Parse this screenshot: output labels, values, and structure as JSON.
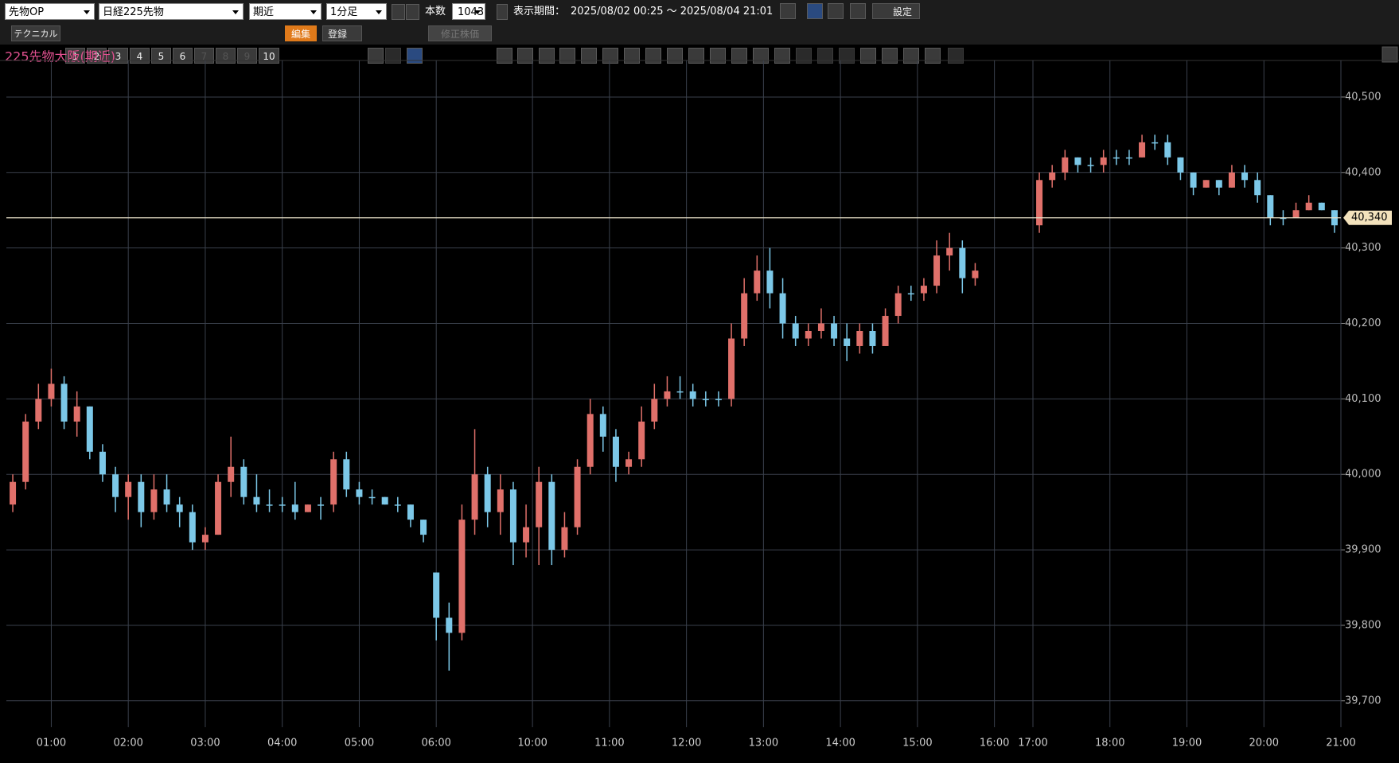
{
  "toolbar": {
    "market": "先物OP",
    "symbol": "日経225先物",
    "contract": "期近",
    "interval": "1分足",
    "count_label": "本数",
    "count": "1043",
    "period_label": "表示期間：",
    "period": "2025/08/02 00:25 ～ 2025/08/04 21:01",
    "settings": "設定"
  },
  "toolbar2": {
    "technical": "テクニカル",
    "slots": [
      "1",
      "2",
      "3",
      "4",
      "5",
      "6",
      "7",
      "8",
      "9",
      "10"
    ],
    "edit": "編集",
    "register": "登録",
    "adjusted": "修正株価"
  },
  "chart_data": {
    "type": "candlestick",
    "title": "225先物大阪(期近)",
    "x": [
      0.5,
      1.5,
      2.5,
      3.5,
      4.5,
      5.5,
      6.5,
      7.5,
      8.5,
      9.5,
      10.5,
      11.5,
      12.5,
      13.5,
      14.5,
      15.5,
      16.5,
      17.5,
      18.5,
      19.5,
      20.5,
      21.5,
      22.5,
      23.5,
      24.5,
      25.5,
      26.5,
      27.5,
      28.5,
      29.5,
      30.5,
      31.5,
      32.5,
      33.5,
      34.5,
      35.5,
      36.5,
      37.5,
      38.5,
      39.5,
      40.5,
      41.5,
      42.5,
      43.5,
      44.5,
      45.5,
      46.5,
      47.5,
      48.5,
      49.5,
      50.5,
      51.5,
      52.5,
      53.5,
      54.5,
      55.5,
      56.5,
      57.5,
      58.5,
      59.5,
      60.5,
      61.5,
      62.5,
      63.5,
      64.5,
      65.5,
      66.5,
      67.5,
      68.5,
      69.5,
      70.5,
      71.5,
      72.5,
      73.5,
      74.5,
      75.5,
      80.5,
      81.5,
      82.5,
      83.5,
      84.5,
      85.5,
      86.5,
      87.5,
      88.5,
      89.5,
      90.5,
      91.5,
      92.5,
      93.5,
      94.5,
      95.5,
      96.5,
      97.5,
      98.5,
      99.5,
      100.5,
      101.5,
      102.5,
      103.5
    ],
    "open": [
      39960,
      39990,
      40070,
      40100,
      40120,
      40070,
      40090,
      40030,
      40000,
      39970,
      39990,
      39950,
      39980,
      39960,
      39950,
      39910,
      39920,
      39990,
      40010,
      39970,
      39960,
      39960,
      39960,
      39950,
      39960,
      39960,
      40020,
      39980,
      39970,
      39970,
      39960,
      39960,
      39940,
      39870,
      39810,
      39790,
      39940,
      40000,
      39950,
      39980,
      39910,
      39930,
      39990,
      39900,
      39930,
      40010,
      40080,
      40050,
      40010,
      40020,
      40070,
      40100,
      40110,
      40110,
      40100,
      40100,
      40100,
      40180,
      40240,
      40270,
      40240,
      40200,
      40180,
      40190,
      40200,
      40180,
      40170,
      40190,
      40170,
      40210,
      40240,
      40240,
      40250,
      40290,
      40300,
      40260,
      40330,
      40390,
      40400,
      40420,
      40410,
      40410,
      40420,
      40420,
      40420,
      40440,
      40440,
      40420,
      40400,
      40380,
      40390,
      40380,
      40400,
      40390,
      40370,
      40340,
      40340,
      40350,
      40360,
      40350
    ],
    "high": [
      40000,
      40080,
      40120,
      40140,
      40130,
      40110,
      40090,
      40040,
      40010,
      40000,
      40000,
      40000,
      40000,
      39970,
      39960,
      39930,
      40000,
      40050,
      40020,
      40000,
      39980,
      39970,
      39990,
      39960,
      39970,
      40030,
      40030,
      39990,
      39980,
      39970,
      39970,
      39960,
      39940,
      39870,
      39830,
      39960,
      40060,
      40010,
      40000,
      39990,
      39960,
      40010,
      40000,
      39950,
      40020,
      40100,
      40090,
      40060,
      40030,
      40090,
      40120,
      40130,
      40130,
      40120,
      40110,
      40110,
      40200,
      40260,
      40290,
      40300,
      40260,
      40210,
      40200,
      40220,
      40210,
      40200,
      40200,
      40200,
      40220,
      40250,
      40250,
      40260,
      40310,
      40320,
      40310,
      40280,
      40400,
      40410,
      40430,
      40420,
      40420,
      40430,
      40430,
      40430,
      40450,
      40450,
      40450,
      40420,
      40400,
      40390,
      40390,
      40410,
      40410,
      40400,
      40370,
      40350,
      40360,
      40370,
      40360,
      40350
    ],
    "low": [
      39950,
      39980,
      40060,
      40090,
      40060,
      40050,
      40020,
      39990,
      39950,
      39940,
      39930,
      39940,
      39950,
      39930,
      39900,
      39900,
      39920,
      39970,
      39960,
      39950,
      39950,
      39950,
      39940,
      39950,
      39940,
      39950,
      39970,
      39960,
      39960,
      39960,
      39950,
      39930,
      39910,
      39780,
      39740,
      39780,
      39920,
      39930,
      39920,
      39880,
      39890,
      39880,
      39880,
      39890,
      39920,
      40000,
      40030,
      39990,
      40000,
      40010,
      40060,
      40090,
      40100,
      40090,
      40090,
      40090,
      40090,
      40170,
      40230,
      40220,
      40180,
      40170,
      40170,
      40180,
      40170,
      40150,
      40160,
      40160,
      40170,
      40200,
      40230,
      40230,
      40240,
      40270,
      40240,
      40250,
      40320,
      40380,
      40390,
      40400,
      40400,
      40400,
      40410,
      40410,
      40420,
      40430,
      40410,
      40390,
      40370,
      40380,
      40370,
      40380,
      40380,
      40360,
      40330,
      40330,
      40340,
      40350,
      40350,
      40320
    ],
    "close": [
      39990,
      40070,
      40100,
      40120,
      40070,
      40090,
      40030,
      40000,
      39970,
      39990,
      39950,
      39980,
      39960,
      39950,
      39910,
      39920,
      39990,
      40010,
      39970,
      39960,
      39960,
      39960,
      39950,
      39960,
      39960,
      40020,
      39980,
      39970,
      39970,
      39960,
      39960,
      39940,
      39920,
      39810,
      39790,
      39940,
      40000,
      39950,
      39980,
      39910,
      39930,
      39990,
      39900,
      39930,
      40010,
      40080,
      40050,
      40010,
      40020,
      40070,
      40100,
      40110,
      40110,
      40100,
      40100,
      40100,
      40180,
      40240,
      40270,
      40240,
      40200,
      40180,
      40190,
      40200,
      40180,
      40170,
      40190,
      40170,
      40210,
      40240,
      40240,
      40250,
      40290,
      40300,
      40260,
      40270,
      40390,
      40400,
      40420,
      40410,
      40410,
      40420,
      40420,
      40420,
      40440,
      40440,
      40420,
      40400,
      40380,
      40390,
      40380,
      40400,
      40390,
      40370,
      40340,
      40340,
      40350,
      40360,
      40350,
      40330
    ],
    "xlim": [
      0,
      104
    ],
    "xticks": [
      {
        "value": 3.5,
        "label": "01:00"
      },
      {
        "value": 9.5,
        "label": "02:00"
      },
      {
        "value": 15.5,
        "label": "03:00"
      },
      {
        "value": 21.5,
        "label": "04:00"
      },
      {
        "value": 27.5,
        "label": "05:00"
      },
      {
        "value": 33.5,
        "label": "06:00"
      },
      {
        "value": 41,
        "label": "10:00"
      },
      {
        "value": 47,
        "label": "11:00"
      },
      {
        "value": 53,
        "label": "12:00"
      },
      {
        "value": 59,
        "label": "13:00"
      },
      {
        "value": 65,
        "label": "14:00"
      },
      {
        "value": 71,
        "label": "15:00"
      },
      {
        "value": 77,
        "label": "16:00"
      },
      {
        "value": 80,
        "label": "17:00"
      },
      {
        "value": 86,
        "label": "18:00"
      },
      {
        "value": 92,
        "label": "19:00"
      },
      {
        "value": 98,
        "label": "20:00"
      },
      {
        "value": 104,
        "label": "21:00"
      }
    ],
    "ylim": [
      39665,
      40540
    ],
    "yticks": [
      {
        "value": 39700,
        "label": "39,700"
      },
      {
        "value": 39800,
        "label": "39,800"
      },
      {
        "value": 39900,
        "label": "39,900"
      },
      {
        "value": 40000,
        "label": "40,000"
      },
      {
        "value": 40100,
        "label": "40,100"
      },
      {
        "value": 40200,
        "label": "40,200"
      },
      {
        "value": 40300,
        "label": "40,300"
      },
      {
        "value": 40400,
        "label": "40,400"
      },
      {
        "value": 40500,
        "label": "40,500"
      }
    ],
    "price_line": {
      "value": 40340,
      "label": "40,340"
    },
    "up_color": "#e0706a",
    "down_color": "#7cc8e8",
    "grid": true
  }
}
